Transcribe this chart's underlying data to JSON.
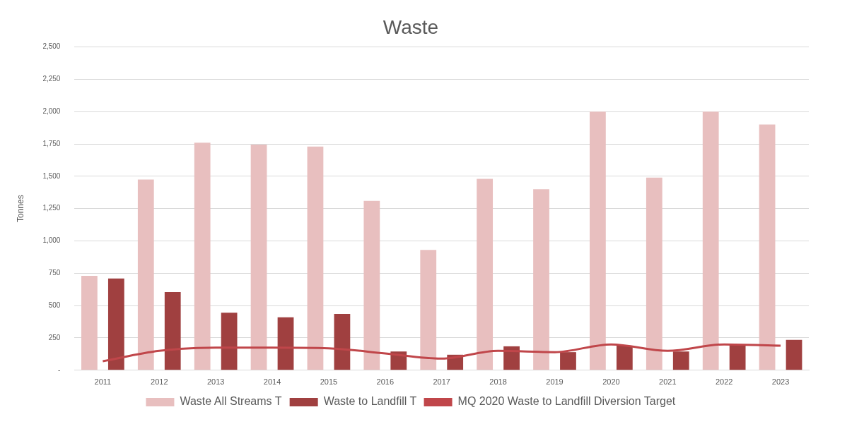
{
  "chart_data": {
    "type": "bar",
    "title": "Waste",
    "ylabel": "Tonnes",
    "categories": [
      "2011",
      "2012",
      "2013",
      "2014",
      "2015",
      "2016",
      "2017",
      "2018",
      "2019",
      "2020",
      "2021",
      "2022",
      "2023"
    ],
    "series": [
      {
        "name": "Waste All Streams T",
        "color": "#e8bfbf",
        "values": [
          730,
          1475,
          1760,
          1745,
          1730,
          1310,
          930,
          1480,
          1400,
          2000,
          1490,
          2000,
          1900
        ]
      },
      {
        "name": "Waste to Landfill T",
        "color": "#a04040",
        "values": [
          710,
          605,
          445,
          410,
          435,
          145,
          120,
          185,
          140,
          190,
          145,
          200,
          235
        ]
      },
      {
        "name": "MQ 2020 Waste to Landfill Diversion Target",
        "type": "line",
        "color": "#c0464a",
        "values": [
          70,
          150,
          175,
          175,
          170,
          130,
          90,
          150,
          140,
          200,
          150,
          200,
          190
        ]
      }
    ],
    "ylim": [
      0,
      2500
    ],
    "yticks": [
      {
        "value": 0,
        "label": "-"
      },
      {
        "value": 250,
        "label": "250"
      },
      {
        "value": 500,
        "label": "500"
      },
      {
        "value": 750,
        "label": "750"
      },
      {
        "value": 1000,
        "label": "1,000"
      },
      {
        "value": 1250,
        "label": "1,250"
      },
      {
        "value": 1500,
        "label": "1,500"
      },
      {
        "value": 1750,
        "label": "1,750"
      },
      {
        "value": 2000,
        "label": "2,000"
      },
      {
        "value": 2250,
        "label": "2,250"
      },
      {
        "value": 2500,
        "label": "2,500"
      }
    ],
    "grid": "y",
    "legend": "bottom",
    "marker": "none"
  }
}
